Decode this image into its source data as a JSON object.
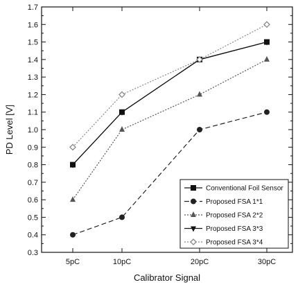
{
  "chart_data": {
    "type": "line",
    "categories": [
      "5pC",
      "10pC",
      "20pC",
      "30pC"
    ],
    "xlabel": "Calibrator Signal",
    "ylabel": "PD Level [V]",
    "ylim": [
      0.3,
      1.7
    ],
    "yticks": [
      "0.3",
      "0.4",
      "0.5",
      "0.6",
      "0.7",
      "0.8",
      "0.9",
      "1.0",
      "1.1",
      "1.2",
      "1.3",
      "1.4",
      "1.5",
      "1.6",
      "1.7"
    ],
    "grid": false,
    "legend_position": "bottom-right",
    "series": [
      {
        "name": "Conventional Foil Sensor",
        "values": [
          0.8,
          1.1,
          1.4,
          1.5
        ],
        "marker": "square",
        "dash": "solid",
        "color": "#111111"
      },
      {
        "name": "Proposed FSA 1*1",
        "values": [
          0.4,
          0.5,
          1.0,
          1.1
        ],
        "marker": "circle",
        "dash": "dashed",
        "color": "#222222"
      },
      {
        "name": "Proposed FSA 2*2",
        "values": [
          0.6,
          1.0,
          1.2,
          1.4
        ],
        "marker": "triangle-up",
        "dash": "dotted",
        "color": "#555555"
      },
      {
        "name": "Proposed FSA 3*3",
        "values": [
          0.8,
          1.1,
          1.4,
          1.5
        ],
        "marker": "triangle-down",
        "dash": "solid",
        "color": "#111111"
      },
      {
        "name": "Proposed FSA 3*4",
        "values": [
          0.9,
          1.2,
          1.4,
          1.6
        ],
        "marker": "diamond",
        "dash": "dotted",
        "color": "#888888"
      }
    ]
  }
}
